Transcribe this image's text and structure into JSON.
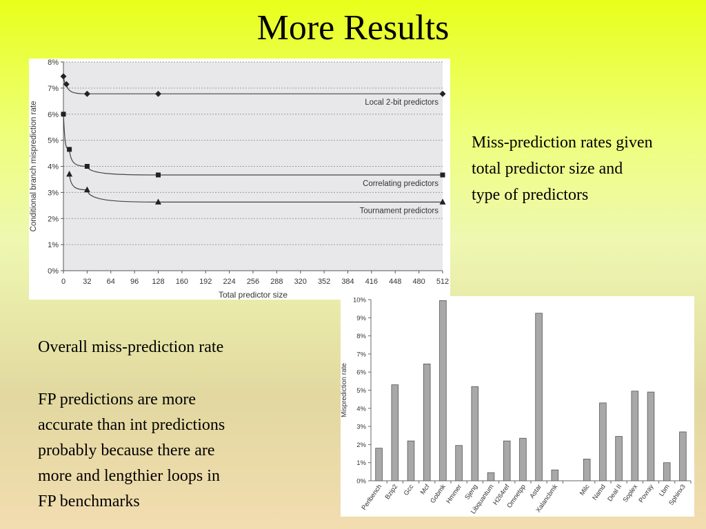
{
  "slide": {
    "title": "More Results",
    "caption": "Miss-prediction rates given\ntotal predictor size and\ntype of predictors",
    "overall_text": "Overall miss-prediction rate",
    "fp_text": "FP predictions are more\naccurate than int predictions\nprobably because there are\nmore and lengthier loops in\nFP benchmarks"
  },
  "chart_data": [
    {
      "type": "line",
      "xlabel": "Total predictor size",
      "ylabel": "Conditional branch misprediction rate",
      "xlim": [
        0,
        512
      ],
      "ylim": [
        0,
        8
      ],
      "xticks": [
        0,
        32,
        64,
        96,
        128,
        160,
        192,
        224,
        256,
        288,
        320,
        352,
        384,
        416,
        448,
        480,
        512
      ],
      "yticks": [
        "0%",
        "1%",
        "2%",
        "3%",
        "4%",
        "5%",
        "6%",
        "7%",
        "8%"
      ],
      "grid": true,
      "series": [
        {
          "name": "Local 2-bit predictors",
          "marker": "diamond",
          "x": [
            0,
            4,
            32,
            128,
            512
          ],
          "y": [
            7.45,
            7.15,
            6.78,
            6.78,
            6.78
          ]
        },
        {
          "name": "Correlating predictors",
          "marker": "square",
          "x": [
            0,
            8,
            32,
            128,
            512
          ],
          "y": [
            6.0,
            4.65,
            4.0,
            3.67,
            3.67
          ]
        },
        {
          "name": "Tournament predictors",
          "marker": "triangle",
          "x": [
            8,
            32,
            128,
            512
          ],
          "y": [
            3.7,
            3.1,
            2.63,
            2.63
          ]
        }
      ]
    },
    {
      "type": "bar",
      "ylabel": "Misprediction rate",
      "ylim": [
        0,
        10
      ],
      "yticks": [
        "0%",
        "1%",
        "2%",
        "3%",
        "4%",
        "5%",
        "6%",
        "7%",
        "8%",
        "9%",
        "10%"
      ],
      "bar_color": "#a8a8a8",
      "categories": [
        "Perlbench",
        "Bzip2",
        "Gcc",
        "Mcf",
        "Gobmk",
        "Hmmer",
        "Sjeng",
        "Libquantum",
        "H264ref",
        "Omnetpp",
        "Astar",
        "Xalancbmk",
        "",
        "Milc",
        "Namd",
        "Deal II",
        "Soplex",
        "Povray",
        "Lbm",
        "Sphinx3"
      ],
      "values": [
        1.8,
        5.3,
        2.2,
        6.45,
        9.95,
        1.95,
        5.2,
        0.45,
        2.2,
        2.35,
        9.25,
        0.6,
        null,
        1.2,
        4.3,
        2.45,
        4.95,
        4.9,
        1.0,
        2.7
      ]
    }
  ]
}
